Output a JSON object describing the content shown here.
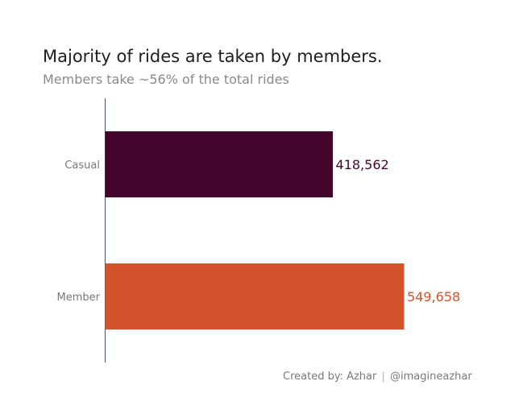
{
  "chart_data": {
    "type": "bar",
    "orientation": "horizontal",
    "title": "Majority of rides are taken by members.",
    "subtitle": "Members take ~56% of the total rides",
    "categories": [
      "Casual",
      "Member"
    ],
    "values": [
      418562,
      549658
    ],
    "value_labels": [
      "418,562",
      "549,658"
    ],
    "colors": [
      "#43052c",
      "#d2522b"
    ],
    "xlim": [
      0,
      600000
    ],
    "grid": false,
    "legend": "none"
  },
  "footer": {
    "author": "Created by: Azhar",
    "separator": "|",
    "handle": "@imagineazhar"
  }
}
